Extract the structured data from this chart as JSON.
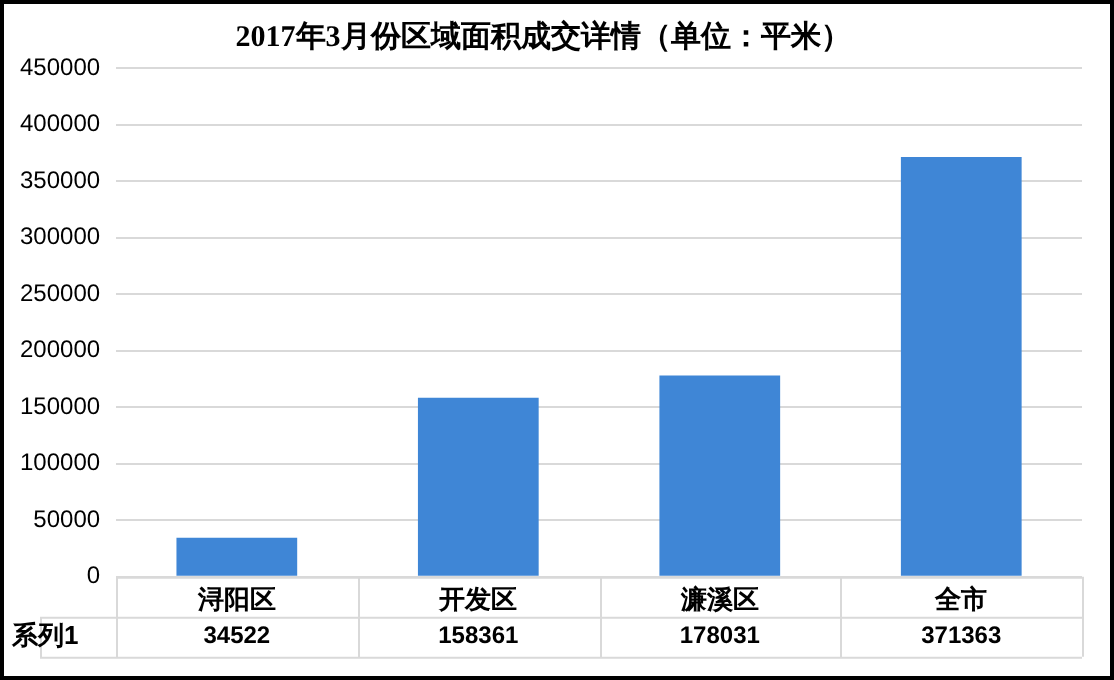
{
  "chart_data": {
    "type": "bar",
    "title": "2017年3月份区域面积成交详情（单位：平米）",
    "categories": [
      "浔阳区",
      "开发区",
      "濂溪区",
      "全市"
    ],
    "series": [
      {
        "name": "系列1",
        "color": "#3f86d6",
        "values": [
          34522,
          158361,
          178031,
          371363
        ]
      }
    ],
    "ylim": [
      0,
      450000
    ],
    "yticks": [
      0,
      50000,
      100000,
      150000,
      200000,
      250000,
      300000,
      350000,
      400000,
      450000
    ],
    "grid": "y",
    "legend": false,
    "data_labels": true
  }
}
